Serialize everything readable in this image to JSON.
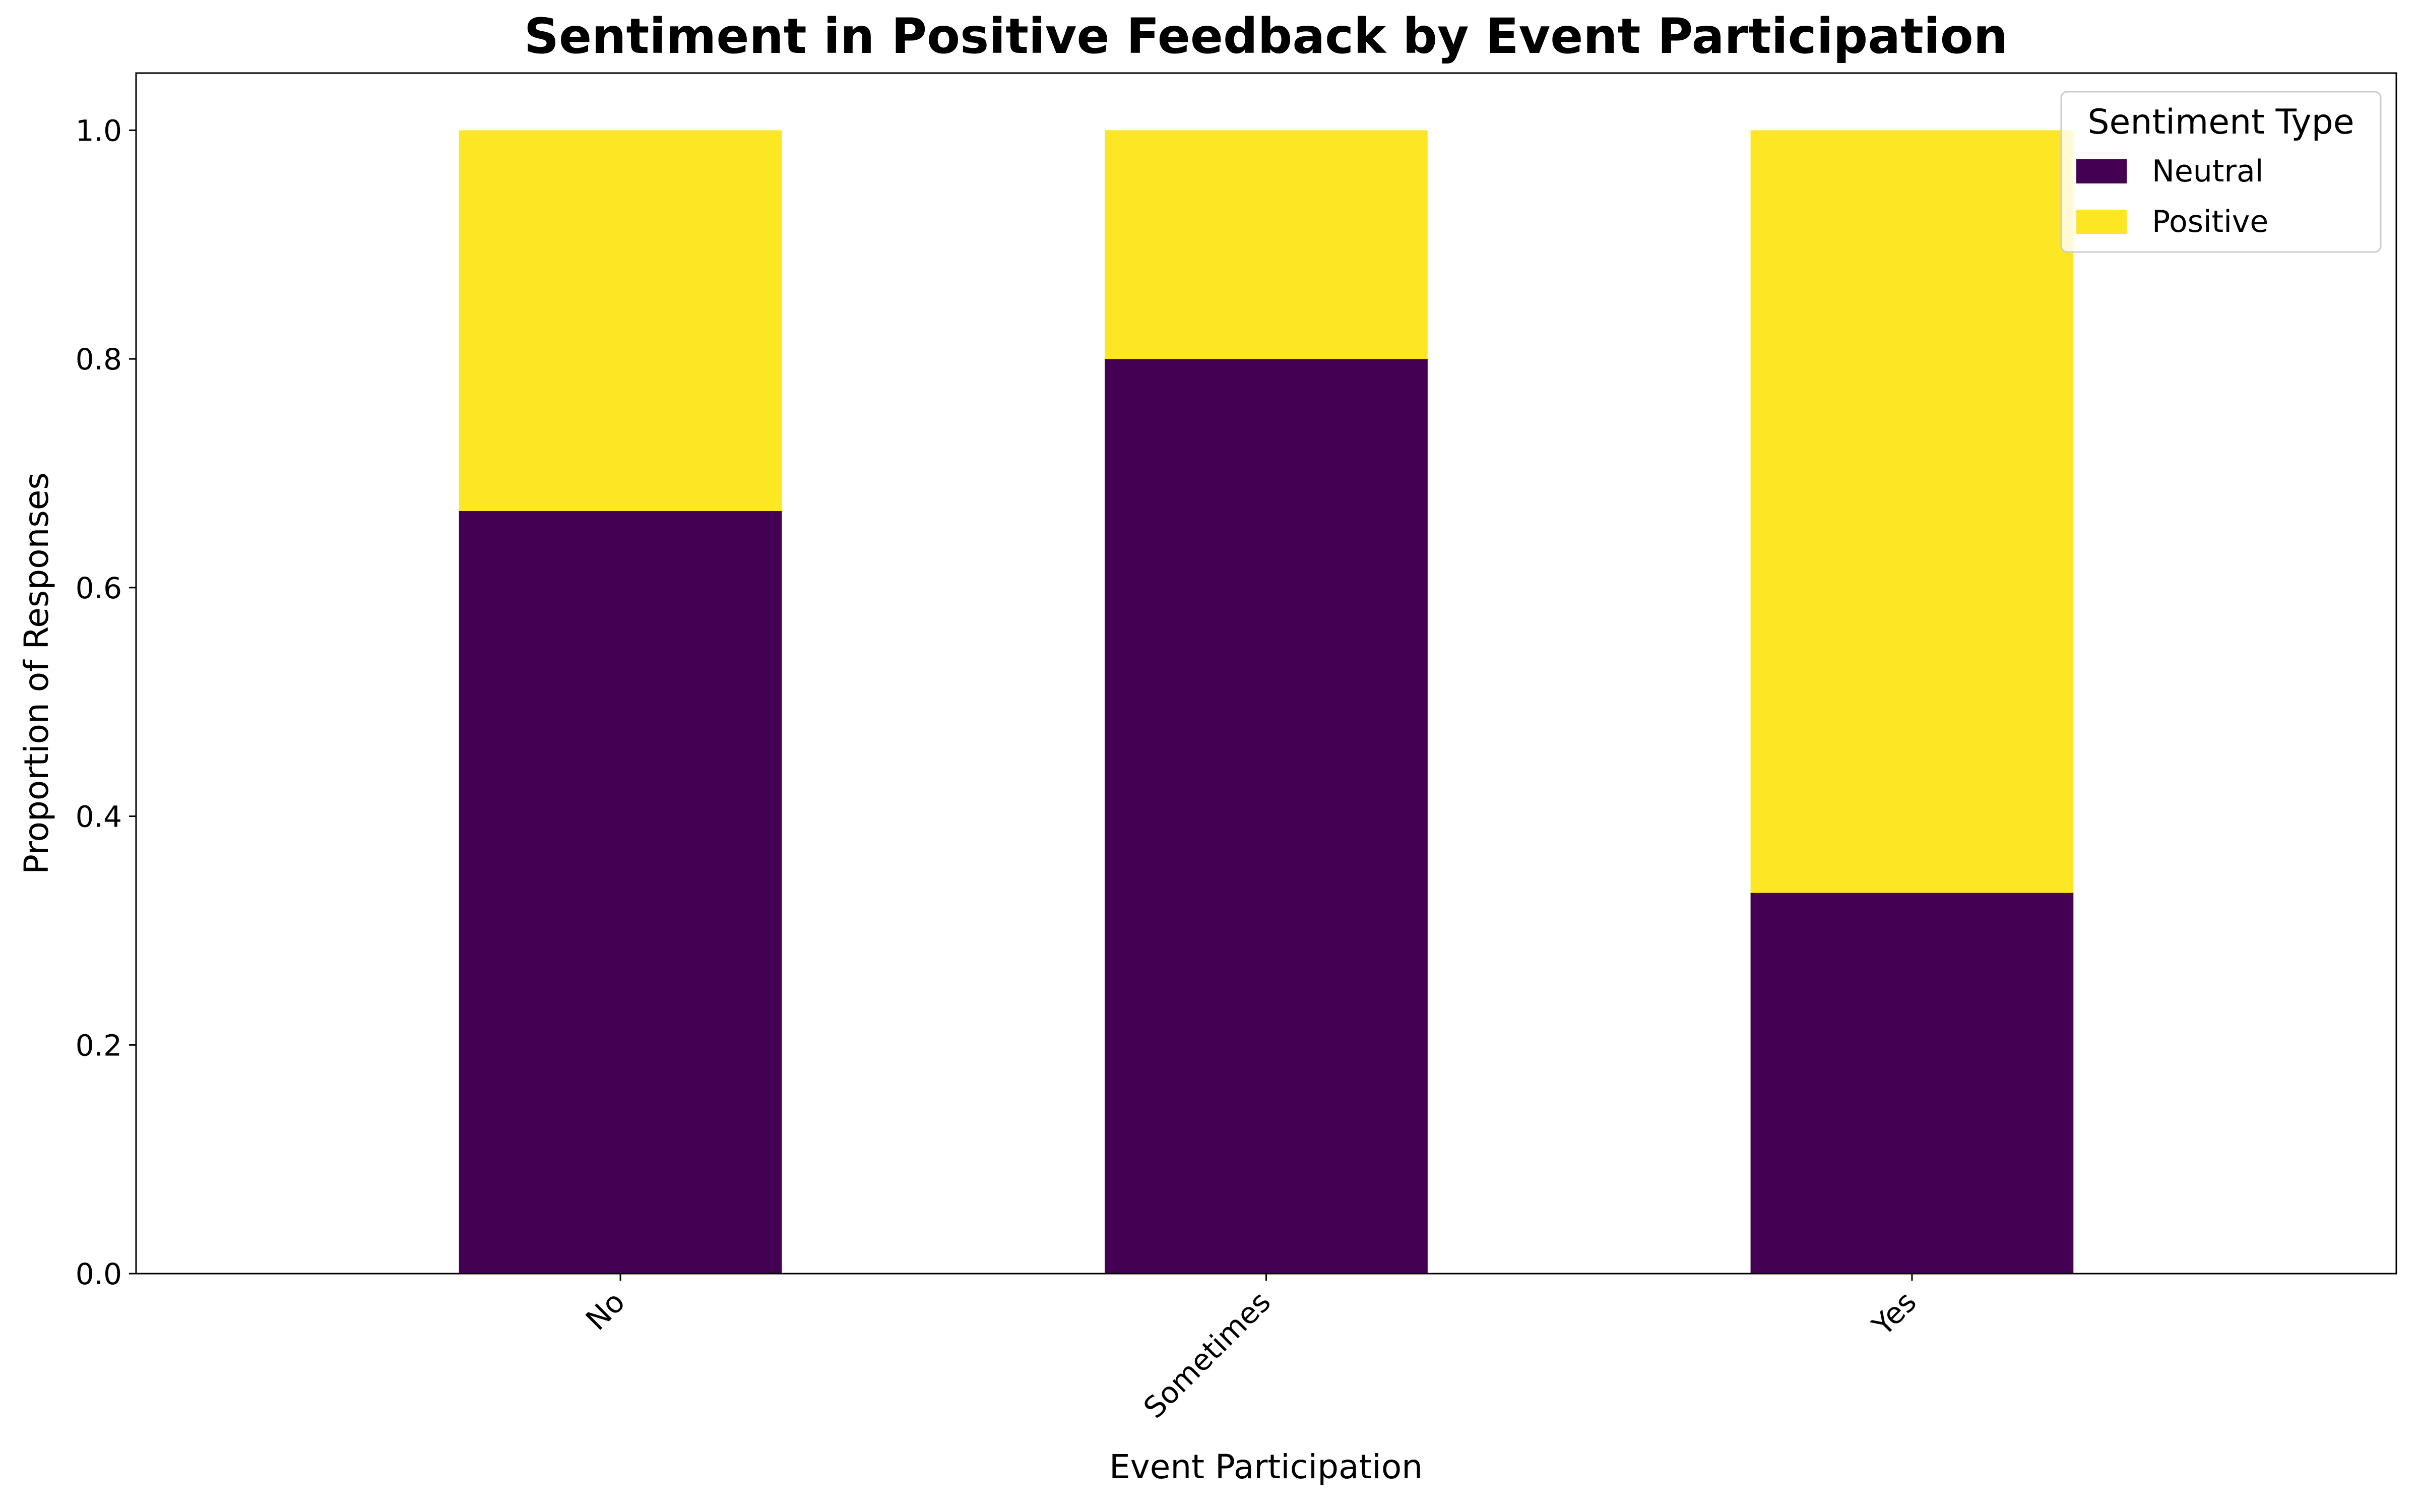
{
  "chart_data": {
    "type": "bar",
    "stacked": true,
    "title": "Sentiment in Positive Feedback by Event Participation",
    "xlabel": "Event Participation",
    "ylabel": "Proportion of Responses",
    "categories": [
      "No",
      "Sometimes",
      "Yes"
    ],
    "series": [
      {
        "name": "Neutral",
        "values": [
          0.667,
          0.8,
          0.333
        ],
        "color": "#440154"
      },
      {
        "name": "Positive",
        "values": [
          0.333,
          0.2,
          0.667
        ],
        "color": "#fde725"
      }
    ],
    "ylim": [
      0,
      1.05
    ],
    "yticks": [
      "0.0",
      "0.2",
      "0.4",
      "0.6",
      "0.8",
      "1.0"
    ],
    "grid": false,
    "legend": {
      "title": "Sentiment Type",
      "placement": "top-right"
    }
  }
}
